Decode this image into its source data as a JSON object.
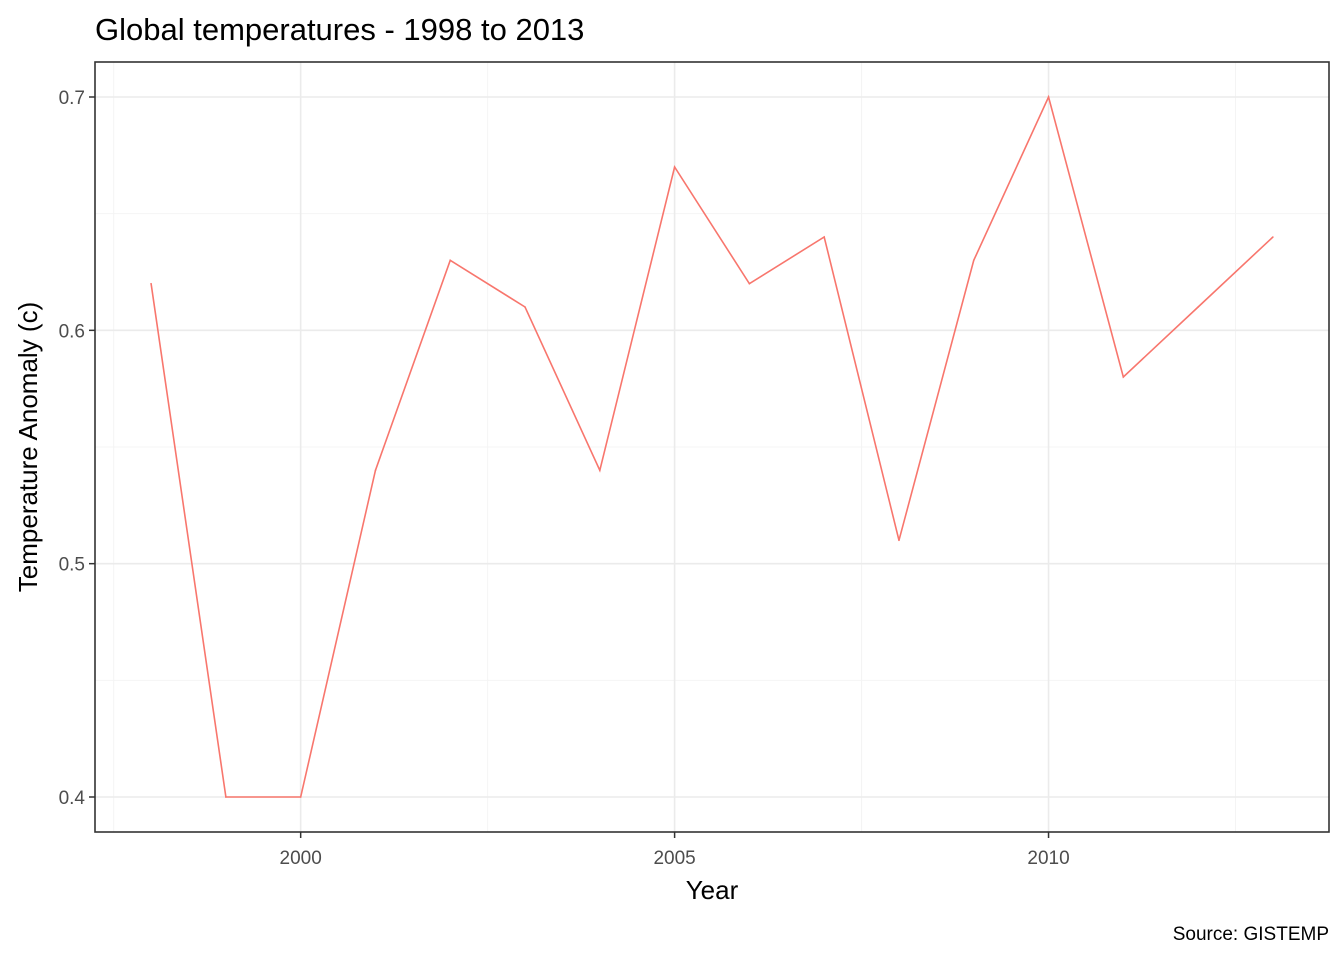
{
  "chart_data": {
    "type": "line",
    "title": "Global temperatures - 1998 to 2013",
    "xlabel": "Year",
    "ylabel": "Temperature Anomaly (c)",
    "caption": "Source: GISTEMP",
    "x": [
      1998,
      1999,
      2000,
      2001,
      2002,
      2003,
      2004,
      2005,
      2006,
      2007,
      2008,
      2009,
      2010,
      2011,
      2012,
      2013
    ],
    "series": [
      {
        "values": [
          0.62,
          0.4,
          0.4,
          0.54,
          0.63,
          0.61,
          0.54,
          0.67,
          0.62,
          0.64,
          0.51,
          0.63,
          0.7,
          0.58,
          0.61,
          0.64
        ],
        "color": "#F8766D"
      }
    ],
    "xlim": [
      1997.25,
      2013.75
    ],
    "ylim": [
      0.385,
      0.715
    ],
    "x_ticks": [
      2000,
      2005,
      2010
    ],
    "x_tick_labels": [
      "2000",
      "2005",
      "2010"
    ],
    "x_minor_ticks": [
      1997.5,
      2002.5,
      2007.5,
      2012.5
    ],
    "y_ticks": [
      0.4,
      0.5,
      0.6,
      0.7
    ],
    "y_tick_labels": [
      "0.4",
      "0.5",
      "0.6",
      "0.7"
    ],
    "y_minor_ticks": [
      0.45,
      0.55,
      0.65
    ],
    "grid": true,
    "legend": "none",
    "theme": "bw"
  }
}
